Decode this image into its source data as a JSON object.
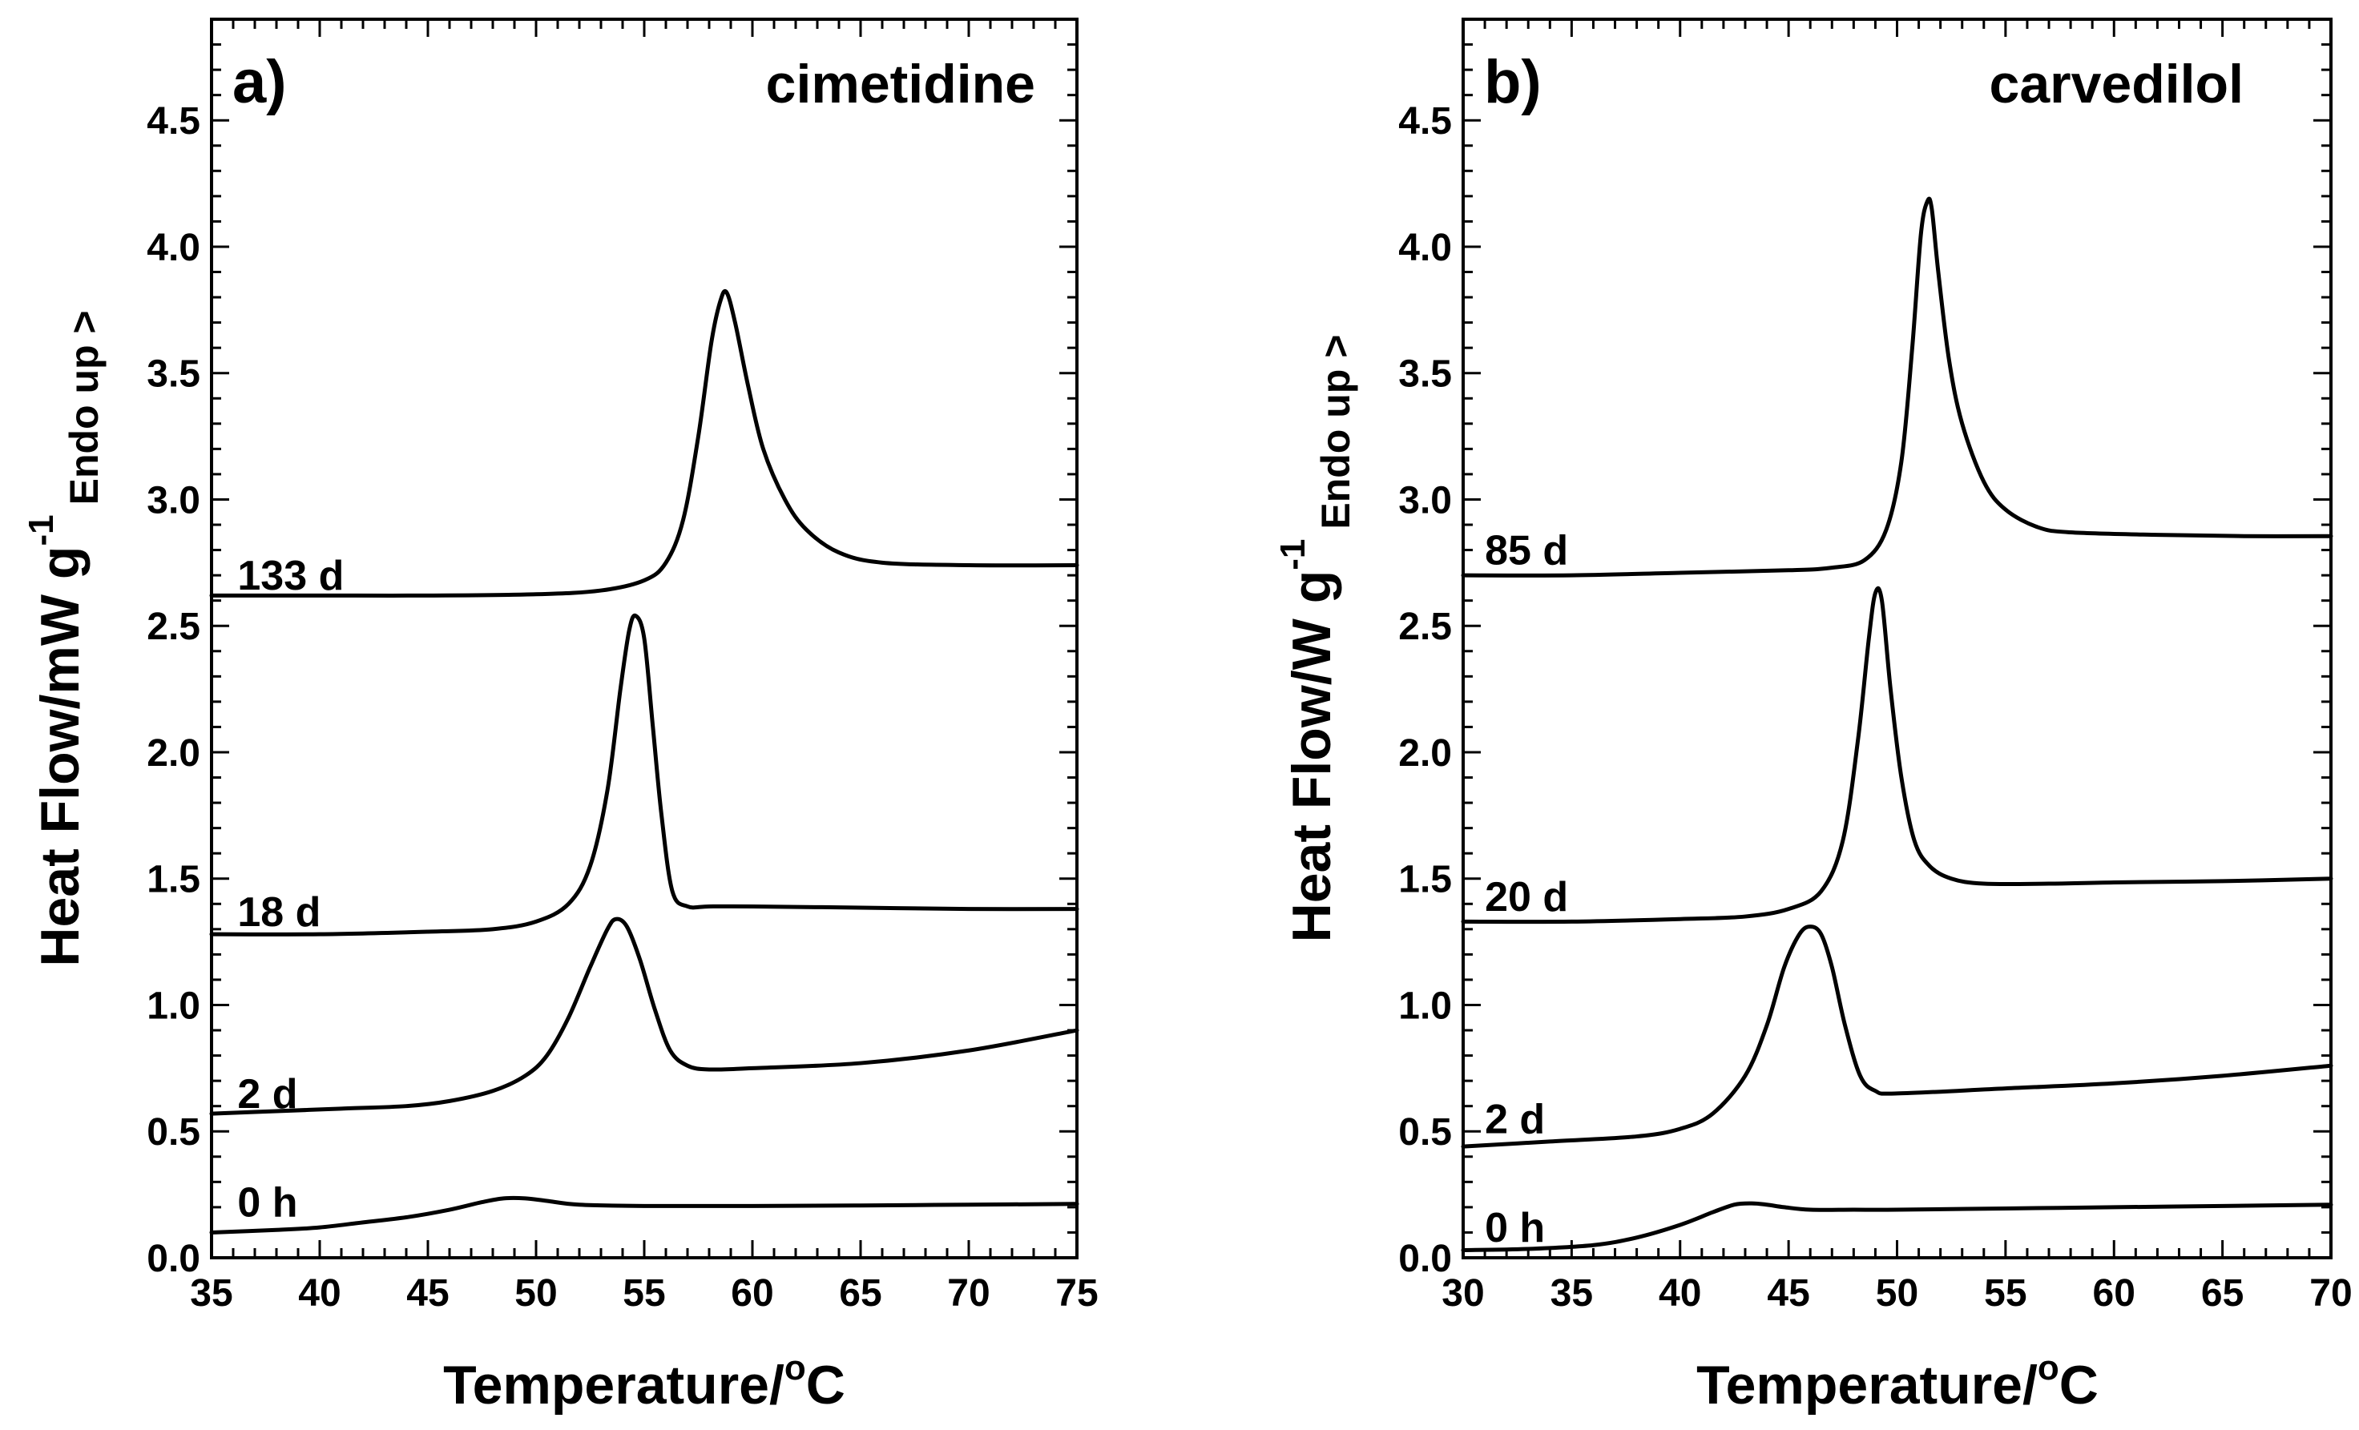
{
  "chart_data": [
    {
      "type": "line",
      "panel_label": "a)",
      "title": "cimetidine",
      "xlabel": "Temperature/",
      "xlabel_sup": "o",
      "xlabel_unit": "C",
      "ylabel_main": "Heat Flow/mW g",
      "ylabel_sup": "-1",
      "ylabel_sub": "Endo up >",
      "xlim": [
        35,
        75
      ],
      "ylim": [
        0.0,
        4.9
      ],
      "x_ticks": [
        "35",
        "40",
        "45",
        "50",
        "55",
        "60",
        "65",
        "70",
        "75"
      ],
      "y_ticks": [
        "0.0",
        "0.5",
        "1.0",
        "1.5",
        "2.0",
        "2.5",
        "3.0",
        "3.5",
        "4.0",
        "4.5"
      ],
      "series": [
        {
          "name": "0 h",
          "label_pos": [
            36.2,
            0.22
          ],
          "x": [
            35,
            38,
            40,
            42,
            44,
            46,
            47.5,
            48.5,
            49.5,
            50.5,
            52,
            55,
            60,
            65,
            70,
            75
          ],
          "values": [
            0.1,
            0.11,
            0.12,
            0.14,
            0.16,
            0.19,
            0.22,
            0.235,
            0.235,
            0.225,
            0.21,
            0.205,
            0.205,
            0.207,
            0.21,
            0.213
          ]
        },
        {
          "name": "2 d",
          "label_pos": [
            36.2,
            0.65
          ],
          "x": [
            35,
            38,
            41,
            44,
            46,
            48,
            49.5,
            50.5,
            51.5,
            52.5,
            53.3,
            53.7,
            54.2,
            54.8,
            55.5,
            56.2,
            57,
            58,
            60,
            65,
            70,
            75
          ],
          "values": [
            0.57,
            0.58,
            0.59,
            0.6,
            0.62,
            0.66,
            0.72,
            0.8,
            0.95,
            1.15,
            1.3,
            1.34,
            1.31,
            1.18,
            0.98,
            0.82,
            0.76,
            0.745,
            0.75,
            0.77,
            0.82,
            0.9
          ]
        },
        {
          "name": "18 d",
          "label_pos": [
            36.2,
            1.37
          ],
          "x": [
            35,
            40,
            45,
            48,
            50,
            51.5,
            52.5,
            53.3,
            53.9,
            54.3,
            54.6,
            55.0,
            55.4,
            55.8,
            56.3,
            57,
            58,
            60,
            65,
            70,
            75
          ],
          "values": [
            1.28,
            1.28,
            1.29,
            1.3,
            1.33,
            1.4,
            1.55,
            1.85,
            2.25,
            2.48,
            2.54,
            2.45,
            2.1,
            1.75,
            1.45,
            1.39,
            1.39,
            1.39,
            1.385,
            1.38,
            1.38
          ]
        },
        {
          "name": "133 d",
          "label_pos": [
            36.2,
            2.7
          ],
          "x": [
            35,
            40,
            45,
            50,
            53,
            55,
            56,
            56.8,
            57.5,
            58.1,
            58.5,
            58.8,
            59.2,
            59.8,
            60.5,
            61.5,
            62.5,
            64,
            66,
            70,
            75
          ],
          "values": [
            2.62,
            2.62,
            2.62,
            2.625,
            2.64,
            2.68,
            2.75,
            2.92,
            3.25,
            3.62,
            3.78,
            3.82,
            3.7,
            3.45,
            3.2,
            3.0,
            2.88,
            2.79,
            2.75,
            2.74,
            2.74
          ]
        }
      ]
    },
    {
      "type": "line",
      "panel_label": "b)",
      "title": "carvedilol",
      "xlabel": "Temperature/",
      "xlabel_sup": "o",
      "xlabel_unit": "C",
      "ylabel_main": "Heat Flow/W g",
      "ylabel_sup": "-1",
      "ylabel_sub": "Endo up >",
      "xlim": [
        30,
        70
      ],
      "ylim": [
        0.0,
        4.9
      ],
      "x_ticks": [
        "30",
        "35",
        "40",
        "45",
        "50",
        "55",
        "60",
        "65",
        "70"
      ],
      "y_ticks": [
        "0.0",
        "0.5",
        "1.0",
        "1.5",
        "2.0",
        "2.5",
        "3.0",
        "3.5",
        "4.0",
        "4.5"
      ],
      "series": [
        {
          "name": "0 h",
          "label_pos": [
            31.0,
            0.12
          ],
          "x": [
            30,
            33,
            36,
            38,
            40,
            41.5,
            42.5,
            43.3,
            44,
            44.8,
            46,
            48,
            50,
            55,
            60,
            65,
            70
          ],
          "values": [
            0.03,
            0.035,
            0.05,
            0.08,
            0.13,
            0.18,
            0.21,
            0.215,
            0.21,
            0.2,
            0.19,
            0.19,
            0.19,
            0.195,
            0.2,
            0.205,
            0.21
          ]
        },
        {
          "name": "2 d",
          "label_pos": [
            31.0,
            0.55
          ],
          "x": [
            30,
            34,
            38,
            40,
            41.5,
            43,
            44,
            44.8,
            45.5,
            46.0,
            46.5,
            47,
            47.6,
            48.3,
            49,
            50,
            55,
            60,
            65,
            70
          ],
          "values": [
            0.44,
            0.46,
            0.48,
            0.51,
            0.57,
            0.72,
            0.92,
            1.15,
            1.28,
            1.31,
            1.28,
            1.15,
            0.92,
            0.72,
            0.66,
            0.65,
            0.67,
            0.69,
            0.72,
            0.76
          ]
        },
        {
          "name": "20 d",
          "label_pos": [
            31.0,
            1.43
          ],
          "x": [
            30,
            35,
            40,
            43,
            45,
            46.5,
            47.5,
            48.2,
            48.7,
            49.0,
            49.3,
            49.7,
            50.2,
            50.8,
            51.5,
            52.5,
            54,
            57,
            60,
            65,
            70
          ],
          "values": [
            1.33,
            1.33,
            1.34,
            1.35,
            1.38,
            1.45,
            1.65,
            2.05,
            2.45,
            2.63,
            2.6,
            2.25,
            1.9,
            1.65,
            1.55,
            1.5,
            1.48,
            1.48,
            1.485,
            1.49,
            1.5
          ]
        },
        {
          "name": "85 d",
          "label_pos": [
            31.0,
            2.8
          ],
          "x": [
            30,
            35,
            40,
            45,
            47,
            48.5,
            49.5,
            50.2,
            50.7,
            51.1,
            51.4,
            51.6,
            51.9,
            52.4,
            53,
            54,
            55,
            56.5,
            58,
            62,
            66,
            70
          ],
          "values": [
            2.7,
            2.7,
            2.71,
            2.72,
            2.73,
            2.76,
            2.88,
            3.15,
            3.6,
            4.05,
            4.18,
            4.15,
            3.9,
            3.55,
            3.3,
            3.07,
            2.96,
            2.89,
            2.87,
            2.86,
            2.855,
            2.855
          ]
        }
      ]
    }
  ]
}
